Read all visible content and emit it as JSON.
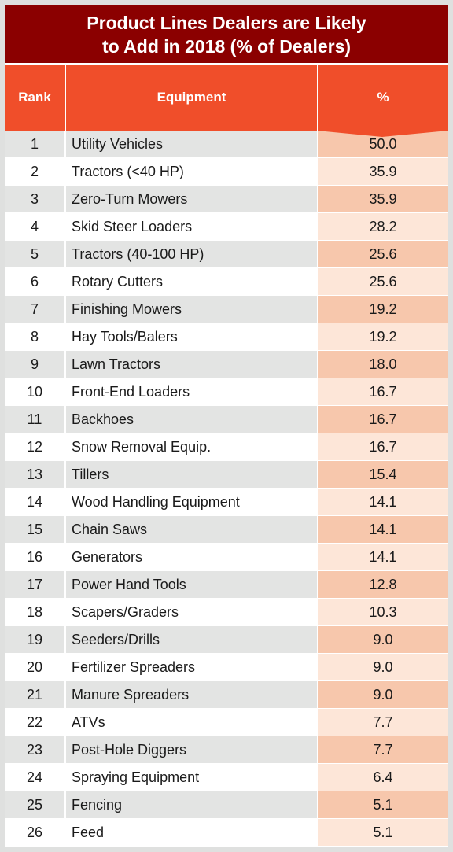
{
  "chart_data": {
    "type": "table",
    "title_lines": [
      "Product Lines Dealers are Likely",
      "to Add in 2018 (% of Dealers)"
    ],
    "columns": [
      "Rank",
      "Equipment",
      "%"
    ],
    "rows": [
      {
        "rank": "1",
        "equipment": "Utility Vehicles",
        "value": "50.0"
      },
      {
        "rank": "2",
        "equipment": "Tractors (<40 HP)",
        "value": "35.9"
      },
      {
        "rank": "3",
        "equipment": "Zero-Turn Mowers",
        "value": "35.9"
      },
      {
        "rank": "4",
        "equipment": "Skid Steer Loaders",
        "value": "28.2"
      },
      {
        "rank": "5",
        "equipment": "Tractors (40-100 HP)",
        "value": "25.6"
      },
      {
        "rank": "6",
        "equipment": "Rotary Cutters",
        "value": "25.6"
      },
      {
        "rank": "7",
        "equipment": "Finishing Mowers",
        "value": "19.2"
      },
      {
        "rank": "8",
        "equipment": "Hay Tools/Balers",
        "value": "19.2"
      },
      {
        "rank": "9",
        "equipment": "Lawn Tractors",
        "value": "18.0"
      },
      {
        "rank": "10",
        "equipment": "Front-End Loaders",
        "value": "16.7"
      },
      {
        "rank": "11",
        "equipment": "Backhoes",
        "value": "16.7"
      },
      {
        "rank": "12",
        "equipment": "Snow Removal Equip.",
        "value": "16.7"
      },
      {
        "rank": "13",
        "equipment": "Tillers",
        "value": "15.4"
      },
      {
        "rank": "14",
        "equipment": "Wood Handling Equipment",
        "value": "14.1"
      },
      {
        "rank": "15",
        "equipment": "Chain Saws",
        "value": "14.1"
      },
      {
        "rank": "16",
        "equipment": "Generators",
        "value": "14.1"
      },
      {
        "rank": "17",
        "equipment": "Power Hand Tools",
        "value": "12.8"
      },
      {
        "rank": "18",
        "equipment": "Scapers/Graders",
        "value": "10.3"
      },
      {
        "rank": "19",
        "equipment": "Seeders/Drills",
        "value": "9.0"
      },
      {
        "rank": "20",
        "equipment": "Fertilizer Spreaders",
        "value": "9.0"
      },
      {
        "rank": "21",
        "equipment": "Manure Spreaders",
        "value": "9.0"
      },
      {
        "rank": "22",
        "equipment": "ATVs",
        "value": "7.7"
      },
      {
        "rank": "23",
        "equipment": "Post-Hole Diggers",
        "value": "7.7"
      },
      {
        "rank": "24",
        "equipment": "Spraying Equipment",
        "value": "6.4"
      },
      {
        "rank": "25",
        "equipment": "Fencing",
        "value": "5.1"
      },
      {
        "rank": "26",
        "equipment": "Feed",
        "value": "5.1"
      }
    ]
  },
  "colors": {
    "title_bg": "#8b0000",
    "header_bg": "#f04e2a",
    "row_gray": "#e3e4e3",
    "value_dark": "#f7c7ac",
    "value_light": "#fde6d8"
  }
}
